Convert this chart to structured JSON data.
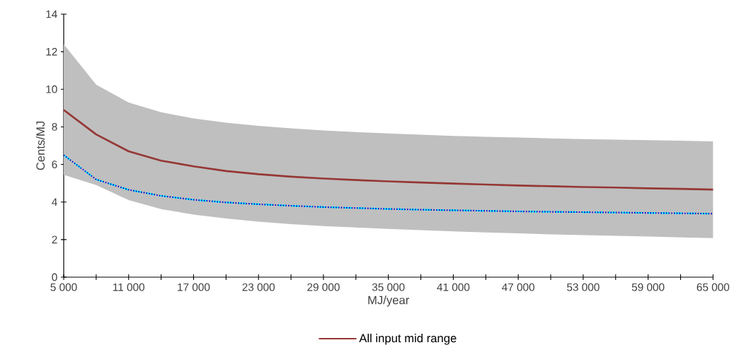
{
  "chart_data": {
    "type": "line",
    "xlabel": "MJ/year",
    "ylabel": "Cents/MJ",
    "x": [
      5000,
      8000,
      11000,
      14000,
      17000,
      20000,
      23000,
      26000,
      29000,
      32000,
      35000,
      38000,
      41000,
      44000,
      47000,
      50000,
      53000,
      56000,
      59000,
      62000,
      65000
    ],
    "series": [
      {
        "color": "#00ffff",
        "line_style": "dashed",
        "values": [
          6.5,
          5.2,
          4.65,
          4.33,
          4.12,
          3.98,
          3.88,
          3.8,
          3.73,
          3.68,
          3.63,
          3.59,
          3.56,
          3.53,
          3.5,
          3.48,
          3.46,
          3.44,
          3.42,
          3.4,
          3.38
        ]
      },
      {
        "color": "#0000cc",
        "line_style": "dotted",
        "values": [
          6.5,
          5.2,
          4.65,
          4.33,
          4.12,
          3.98,
          3.88,
          3.8,
          3.73,
          3.68,
          3.63,
          3.59,
          3.56,
          3.53,
          3.5,
          3.48,
          3.46,
          3.44,
          3.42,
          3.4,
          3.38
        ]
      },
      {
        "name": "All input mid range",
        "color": "#953735",
        "line_style": "solid",
        "values": [
          8.9,
          7.6,
          6.7,
          6.2,
          5.9,
          5.65,
          5.48,
          5.35,
          5.25,
          5.17,
          5.1,
          5.04,
          4.98,
          4.93,
          4.88,
          4.84,
          4.8,
          4.77,
          4.73,
          4.7,
          4.66
        ],
        "lower": [
          5.45,
          4.9,
          4.1,
          3.62,
          3.33,
          3.12,
          2.95,
          2.82,
          2.72,
          2.64,
          2.57,
          2.5,
          2.44,
          2.38,
          2.33,
          2.28,
          2.24,
          2.2,
          2.16,
          2.12,
          2.08
        ],
        "upper": [
          12.4,
          10.25,
          9.3,
          8.78,
          8.45,
          8.22,
          8.05,
          7.92,
          7.81,
          7.72,
          7.65,
          7.58,
          7.52,
          7.47,
          7.43,
          7.39,
          7.35,
          7.32,
          7.29,
          7.26,
          7.23
        ]
      }
    ],
    "xlim": [
      5000,
      65000
    ],
    "xticks": [
      {
        "value": 5000,
        "label": "5 000"
      },
      {
        "value": 8000,
        "label": null
      },
      {
        "value": 11000,
        "label": "11 000"
      },
      {
        "value": 14000,
        "label": null
      },
      {
        "value": 17000,
        "label": "17 000"
      },
      {
        "value": 20000,
        "label": null
      },
      {
        "value": 23000,
        "label": "23 000"
      },
      {
        "value": 26000,
        "label": null
      },
      {
        "value": 29000,
        "label": "29 000"
      },
      {
        "value": 32000,
        "label": null
      },
      {
        "value": 35000,
        "label": "35 000"
      },
      {
        "value": 38000,
        "label": null
      },
      {
        "value": 41000,
        "label": "41 000"
      },
      {
        "value": 44000,
        "label": null
      },
      {
        "value": 47000,
        "label": "47 000"
      },
      {
        "value": 50000,
        "label": null
      },
      {
        "value": 53000,
        "label": "53 000"
      },
      {
        "value": 56000,
        "label": null
      },
      {
        "value": 59000,
        "label": "59 000"
      },
      {
        "value": 62000,
        "label": null
      },
      {
        "value": 65000,
        "label": "65 000"
      }
    ],
    "ylim": [
      0,
      14
    ],
    "yticks": [
      0,
      2,
      4,
      6,
      8,
      10,
      12,
      14
    ],
    "grid": false,
    "legend": "bottom",
    "marker": "none"
  }
}
